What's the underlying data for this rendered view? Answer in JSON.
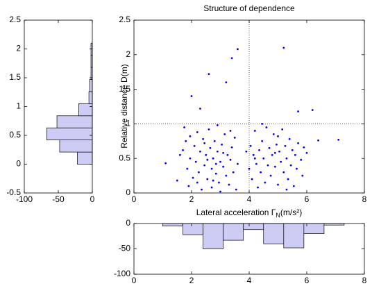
{
  "chart_data": [
    {
      "type": "scatter",
      "title": "Structure of dependence",
      "ylabel": "Relative distance D(m)",
      "xlabel": [
        "Lateral acceleration Γ",
        "N",
        "(m/s²)"
      ],
      "color": "#0000ff",
      "xlim": [
        0,
        8
      ],
      "xticks": [
        0,
        2,
        4,
        6,
        8
      ],
      "ylim": [
        0,
        2.5
      ],
      "yticks": [
        0,
        0.5,
        1,
        1.5,
        2,
        2.5
      ],
      "vlines": [
        4
      ],
      "hlines": [
        1
      ],
      "x": [
        1.1,
        1.5,
        1.6,
        1.7,
        1.75,
        1.8,
        1.85,
        1.9,
        1.95,
        2.0,
        2.05,
        2.1,
        2.15,
        2.2,
        2.25,
        2.3,
        2.3,
        2.35,
        2.4,
        2.45,
        2.5,
        2.55,
        2.6,
        2.6,
        2.65,
        2.7,
        2.7,
        2.75,
        2.8,
        2.85,
        2.9,
        2.9,
        2.95,
        3.0,
        3.0,
        3.05,
        3.1,
        3.15,
        3.2,
        3.2,
        3.25,
        3.3,
        3.35,
        3.4,
        3.4,
        3.45,
        3.5,
        3.55,
        3.6,
        3.6,
        2.55,
        2.85,
        2.45,
        3.1,
        2.2,
        1.95,
        3.35,
        2.75,
        3.9,
        4.0,
        4.05,
        4.1,
        4.15,
        4.2,
        4.25,
        4.3,
        4.35,
        4.4,
        4.45,
        4.5,
        4.55,
        4.6,
        4.65,
        4.7,
        4.75,
        4.8,
        4.85,
        4.9,
        4.95,
        5.0,
        5.05,
        5.1,
        5.15,
        5.2,
        5.2,
        5.25,
        5.3,
        5.35,
        5.4,
        5.45,
        5.5,
        5.55,
        5.6,
        5.65,
        5.7,
        5.7,
        5.8,
        5.85,
        5.9,
        6.0,
        6.2,
        6.4,
        7.1,
        4.45,
        4.9,
        5.3,
        4.2,
        5.0
      ],
      "values": [
        0.43,
        0.18,
        0.55,
        0.62,
        0.95,
        0.75,
        0.35,
        0.1,
        0.5,
        1.4,
        0.22,
        0.68,
        0.45,
        0.88,
        0.3,
        1.22,
        0.6,
        0.05,
        0.78,
        0.4,
        0.55,
        0.2,
        1.72,
        0.92,
        0.65,
        0.35,
        0.08,
        0.5,
        0.75,
        0.28,
        0.6,
        0.98,
        0.15,
        0.45,
        0.02,
        0.7,
        0.38,
        0.85,
        1.6,
        0.25,
        0.55,
        0.12,
        0.48,
        1.95,
        0.66,
        0.3,
        0.8,
        0.05,
        2.08,
        0.42,
        0.48,
        0.42,
        0.72,
        0.58,
        0.15,
        0.82,
        0.9,
        0.18,
        0.6,
        0.35,
        0.68,
        0.2,
        0.55,
        0.9,
        0.42,
        0.08,
        0.62,
        0.3,
        0.75,
        0.5,
        0.15,
        0.95,
        0.4,
        0.65,
        0.25,
        0.55,
        0.85,
        0.38,
        0.7,
        0.12,
        0.6,
        0.45,
        0.92,
        2.1,
        0.3,
        0.68,
        0.5,
        0.2,
        0.78,
        0.4,
        0.62,
        0.1,
        0.55,
        0.35,
        1.18,
        0.72,
        0.48,
        0.25,
        0.66,
        0.58,
        1.2,
        0.76,
        0.77,
        1.0,
        0.58,
        0.05,
        0.5,
        0.82
      ]
    },
    {
      "type": "histogram",
      "orientation": "horizontal",
      "color": "#ccccf5",
      "xlim": [
        -100,
        0
      ],
      "xticks": [
        -100,
        -50,
        0
      ],
      "ylim": [
        -0.5,
        2.5
      ],
      "yticks": [
        -0.5,
        0,
        0.5,
        1,
        1.5,
        2,
        2.5
      ],
      "bins": [
        0,
        0.21,
        0.42,
        0.63,
        0.84,
        1.05,
        1.26,
        1.47,
        1.68,
        1.89,
        2.1
      ],
      "values": [
        -22,
        -48,
        -67,
        -52,
        -20,
        -5,
        -4,
        -2,
        -2,
        -2
      ]
    },
    {
      "type": "histogram",
      "orientation": "vertical",
      "color": "#ccccf5",
      "xlim": [
        0,
        8
      ],
      "xticks": [
        0,
        2,
        4,
        6,
        8
      ],
      "ylim": [
        -100,
        0
      ],
      "yticks": [
        -100,
        -50,
        0
      ],
      "bins": [
        1.0,
        1.7,
        2.4,
        3.1,
        3.8,
        4.5,
        5.2,
        5.9,
        6.6,
        7.3
      ],
      "values": [
        -5,
        -22,
        -50,
        -33,
        -12,
        -40,
        -48,
        -20,
        -3
      ]
    }
  ]
}
